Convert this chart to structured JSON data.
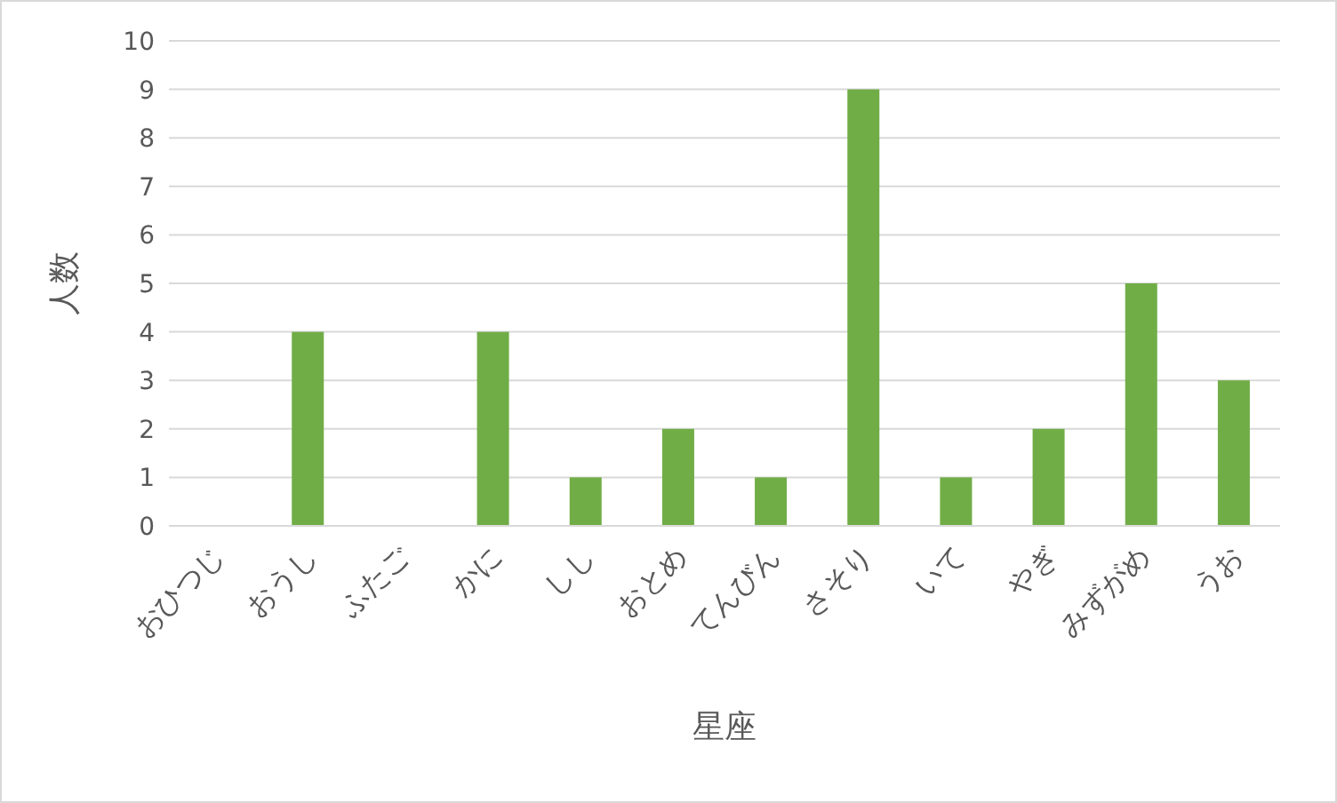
{
  "chart_data": {
    "type": "bar",
    "xlabel": "星座",
    "ylabel": "人数",
    "categories": [
      "おひつじ",
      "おうし",
      "ふたご",
      "かに",
      "しし",
      "おとめ",
      "てんびん",
      "さそり",
      "いて",
      "やぎ",
      "みずがめ",
      "うお"
    ],
    "values": [
      0,
      4,
      0,
      4,
      1,
      2,
      1,
      9,
      1,
      2,
      5,
      3
    ],
    "color": "#70ad47",
    "ylim": [
      0,
      10
    ],
    "yticks": [
      0,
      1,
      2,
      3,
      4,
      5,
      6,
      7,
      8,
      9,
      10
    ],
    "grid": "y"
  }
}
